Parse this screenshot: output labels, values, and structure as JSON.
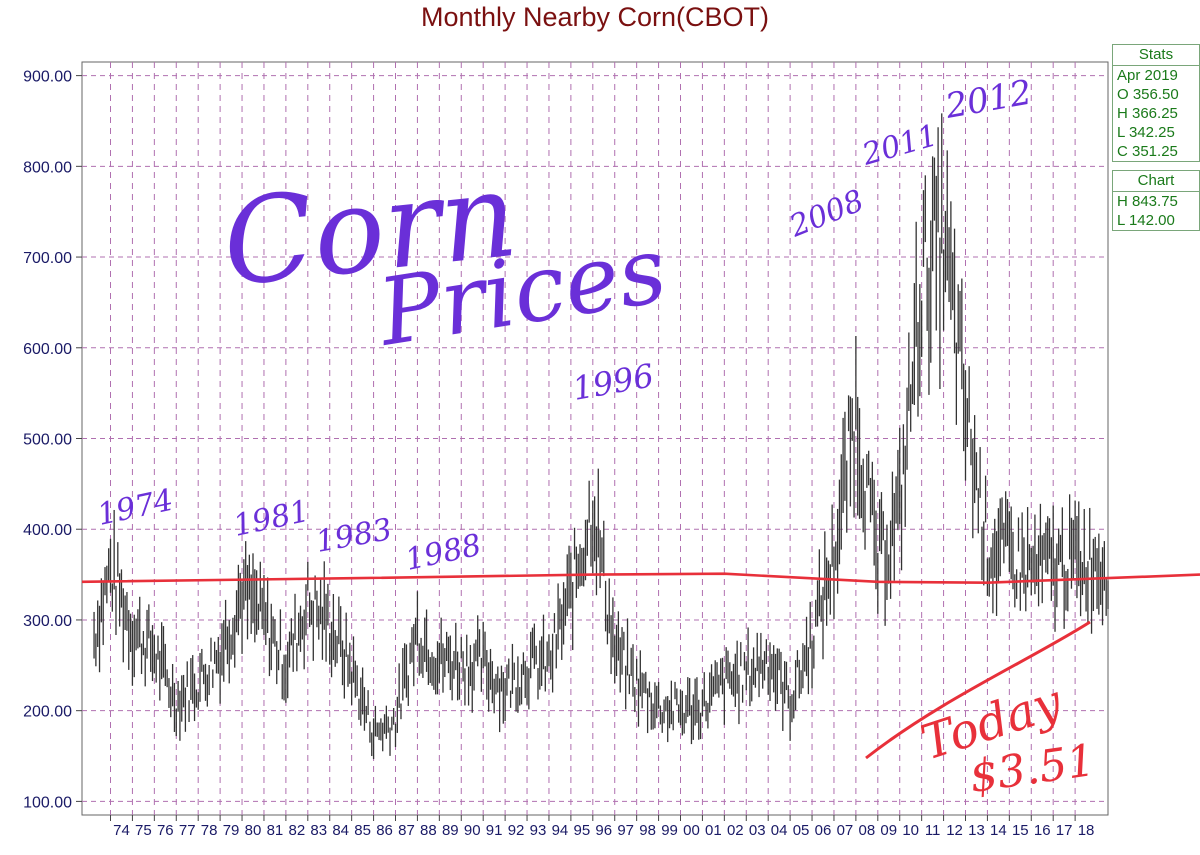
{
  "chart_data": {
    "type": "line",
    "title": "Monthly Nearby Corn(CBOT)",
    "xlabel": "",
    "ylabel": "",
    "ylim": [
      85,
      915
    ],
    "y_ticks": [
      "100.00",
      "200.00",
      "300.00",
      "400.00",
      "500.00",
      "600.00",
      "700.00",
      "800.00",
      "900.00"
    ],
    "x_ticks": [
      "74",
      "75",
      "76",
      "77",
      "78",
      "79",
      "80",
      "81",
      "82",
      "83",
      "84",
      "85",
      "86",
      "87",
      "88",
      "89",
      "90",
      "91",
      "92",
      "93",
      "94",
      "95",
      "96",
      "97",
      "98",
      "99",
      "00",
      "01",
      "02",
      "03",
      "04",
      "05",
      "06",
      "07",
      "08",
      "09",
      "10",
      "11",
      "12",
      "13",
      "14",
      "15",
      "16",
      "17",
      "18"
    ],
    "grid": true,
    "series": [
      {
        "values_by_year": {
          "1973": 260,
          "1974": 355,
          "1975": 290,
          "1976": 265,
          "1977": 210,
          "1978": 232,
          "1979": 265,
          "1980": 330,
          "1981": 300,
          "1982": 250,
          "1983": 320,
          "1984": 295,
          "1985": 245,
          "1986": 175,
          "1987": 190,
          "1988": 290,
          "1989": 255,
          "1990": 255,
          "1991": 250,
          "1992": 225,
          "1993": 250,
          "1994": 250,
          "1995": 330,
          "1996": 430,
          "1997": 265,
          "1998": 230,
          "1999": 205,
          "2000": 200,
          "2001": 205,
          "2002": 230,
          "2003": 240,
          "2004": 260,
          "2005": 210,
          "2006": 280,
          "2007": 370,
          "2008": 530,
          "2009": 360,
          "2010": 420,
          "2011": 680,
          "2012": 720,
          "2013": 530,
          "2014": 380,
          "2015": 370,
          "2016": 355,
          "2017": 360,
          "2018": 365
        }
      },
      {
        "type": "hand-drawn-line",
        "values_by_year": {
          "1973": 342,
          "1985": 346,
          "1996": 350,
          "2002": 351,
          "2009": 342,
          "2014": 341,
          "2019": 350
        }
      }
    ]
  },
  "stats_panel": {
    "header": "Stats",
    "period": "Apr 2019",
    "open": "O  356.50",
    "high": "H  366.25",
    "low": "L  342.25",
    "close": "C  351.25"
  },
  "chart_panel": {
    "header": "Chart",
    "high": "H  843.75",
    "low": "L  142.00"
  },
  "annotations": {
    "big_title_line1": "Corn",
    "big_title_line2": "Prices",
    "y1974": "1974",
    "y1981": "1981",
    "y1983": "1983",
    "y1988": "1988",
    "y1996": "1996",
    "y2008": "2008",
    "y2011": "2011",
    "y2012": "2012",
    "today": "Today",
    "today_price": "$3.51"
  },
  "colors": {
    "title": "#7a1010",
    "axis_text": "#1a1a66",
    "grid": "#b070b0",
    "price": "#333333",
    "red_line": "#e8303a",
    "annotation": "#6a2fd8",
    "panel": "#1a7a1a"
  }
}
